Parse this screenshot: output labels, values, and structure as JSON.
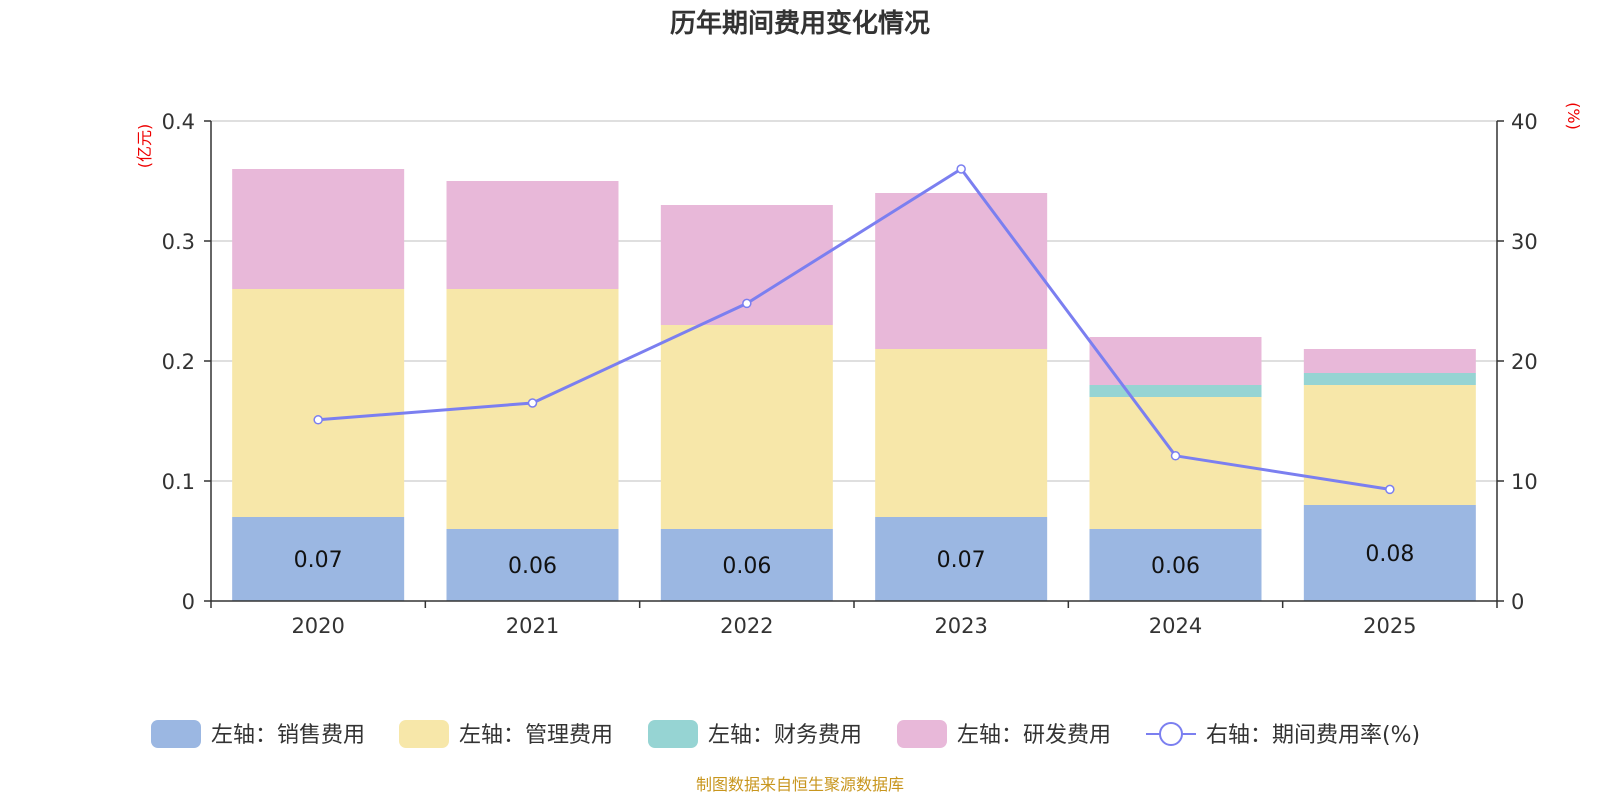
{
  "chart_data": {
    "type": "bar",
    "title": "历年期间费用变化情况",
    "categories": [
      "2020",
      "2021",
      "2022",
      "2023",
      "2024",
      "2025"
    ],
    "left_axis": {
      "unit": "(亿元)",
      "ylim": [
        0,
        0.4
      ],
      "ticks": [
        "0",
        "0.1",
        "0.2",
        "0.3",
        "0.4"
      ]
    },
    "right_axis": {
      "unit": "(%)",
      "ylim": [
        0,
        40
      ],
      "ticks": [
        "0",
        "10",
        "20",
        "30",
        "40"
      ]
    },
    "series": [
      {
        "name": "左轴：销售费用",
        "axis": "left",
        "stack": true,
        "color": "#9bb7e2",
        "values": [
          0.07,
          0.06,
          0.06,
          0.07,
          0.06,
          0.08
        ],
        "labels": [
          "0.07",
          "0.06",
          "0.06",
          "0.07",
          "0.06",
          "0.08"
        ]
      },
      {
        "name": "左轴：管理费用",
        "axis": "left",
        "stack": true,
        "color": "#f7e7a9",
        "values": [
          0.19,
          0.2,
          0.17,
          0.14,
          0.11,
          0.1
        ]
      },
      {
        "name": "左轴：财务费用",
        "axis": "left",
        "stack": true,
        "color": "#96d4d3",
        "values": [
          0,
          0,
          0,
          0,
          0.01,
          0.01
        ]
      },
      {
        "name": "左轴：研发费用",
        "axis": "left",
        "stack": true,
        "color": "#e8b8d9",
        "values": [
          0.1,
          0.09,
          0.1,
          0.13,
          0.04,
          0.02
        ]
      },
      {
        "name": "右轴：期间费用率(%)",
        "axis": "right",
        "type": "line",
        "color": "#7b7ff0",
        "values": [
          15.1,
          16.5,
          24.8,
          36.0,
          12.1,
          9.3
        ]
      }
    ],
    "legend_position": "bottom",
    "grid": true
  },
  "source_note": "制图数据来自恒生聚源数据库"
}
